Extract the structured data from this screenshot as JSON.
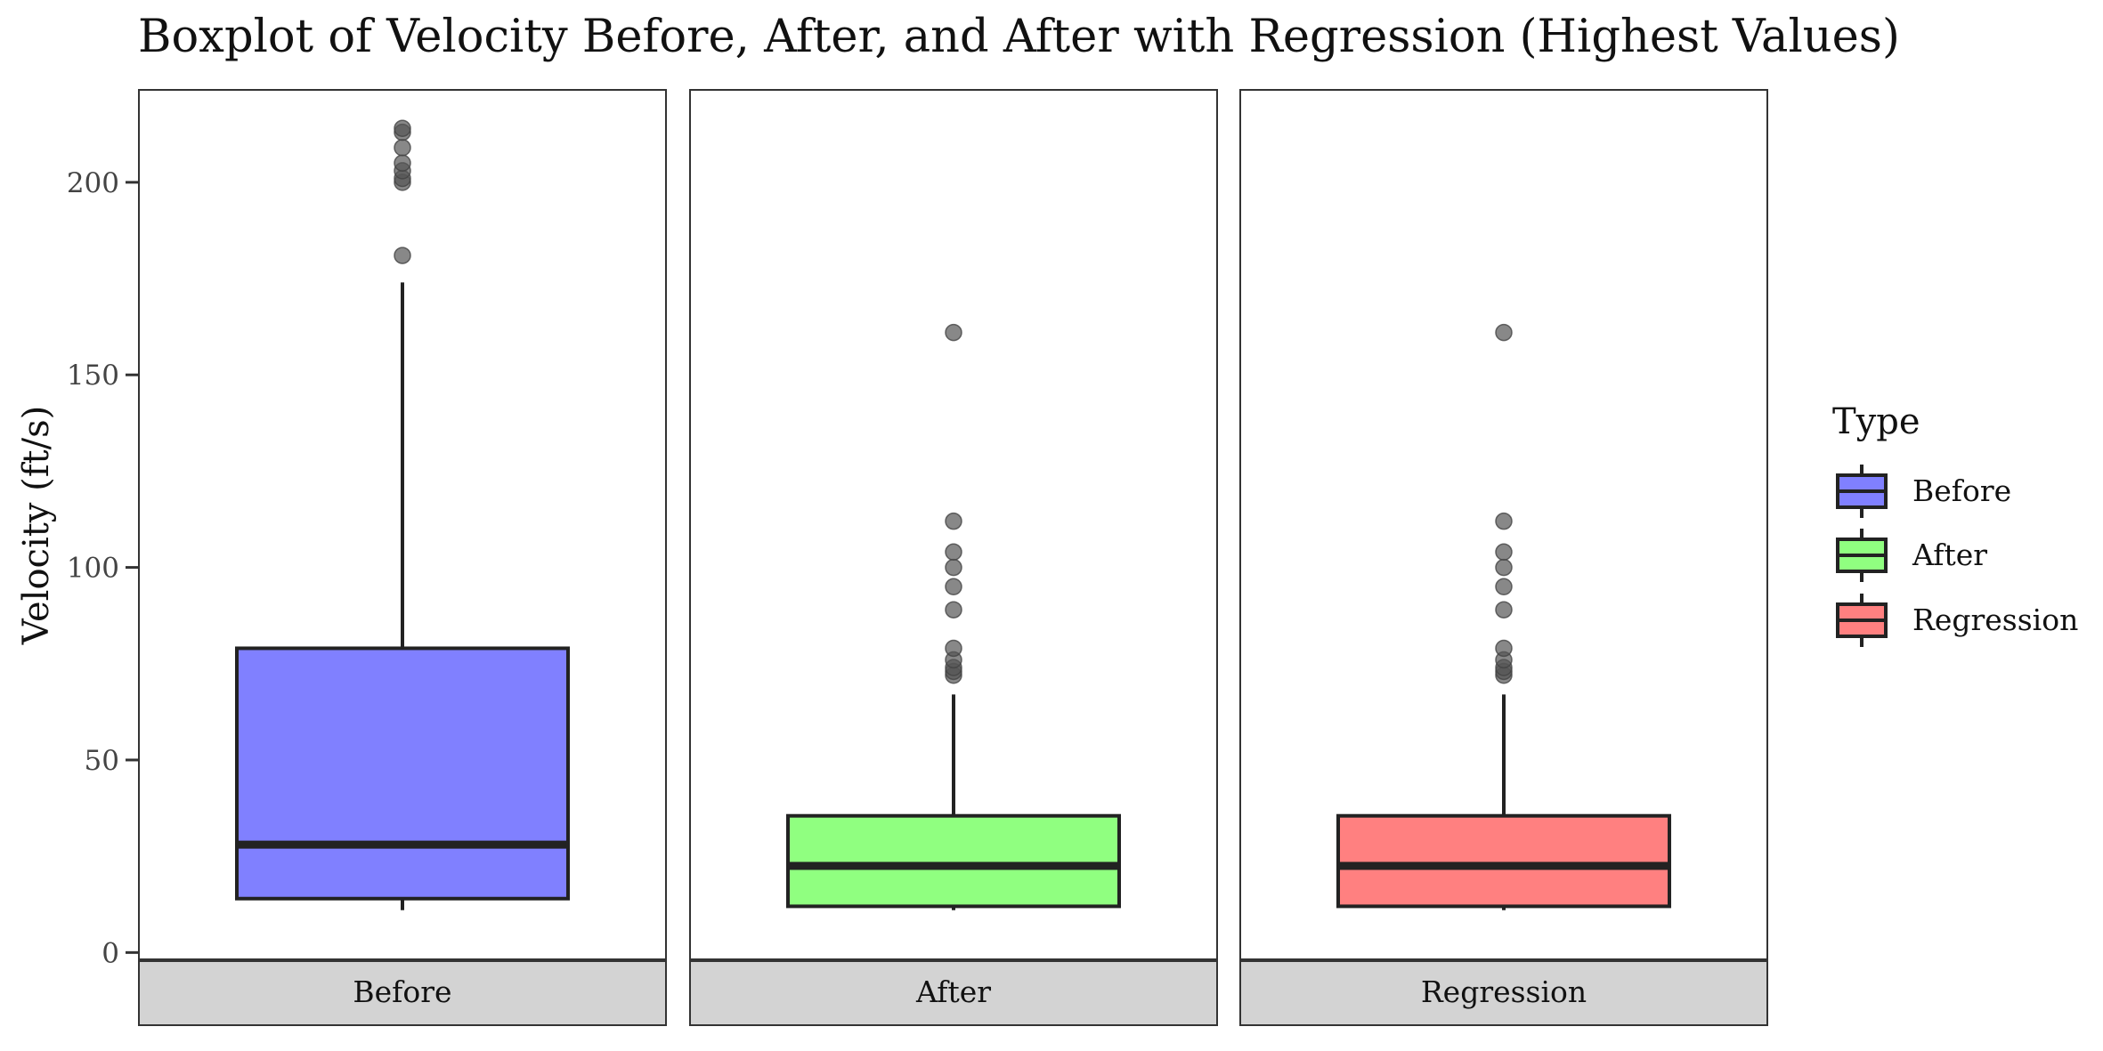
{
  "chart_data": {
    "type": "boxplot",
    "title": "Boxplot of Velocity Before, After, and After with Regression (Highest Values)",
    "xlabel": "",
    "ylabel": "Velocity (ft/s)",
    "ylim": [
      -2,
      224
    ],
    "yticks": [
      0,
      50,
      100,
      150,
      200
    ],
    "facets": [
      "Before",
      "After",
      "Regression"
    ],
    "legend": {
      "title": "Type",
      "position": "right",
      "entries": [
        {
          "label": "Before",
          "color": "#8080FF"
        },
        {
          "label": "After",
          "color": "#90FF80"
        },
        {
          "label": "Regression",
          "color": "#FF8080"
        }
      ]
    },
    "series": [
      {
        "name": "Before",
        "color": "#8080FF",
        "whisker_low": 11,
        "q1": 14,
        "median": 28,
        "q3": 79,
        "whisker_high": 174,
        "outliers": [
          181,
          200,
          201,
          203,
          205,
          209,
          213,
          214
        ]
      },
      {
        "name": "After",
        "color": "#90FF80",
        "whisker_low": 11,
        "q1": 12,
        "median": 22.5,
        "q3": 35.5,
        "whisker_high": 67,
        "outliers": [
          72,
          73,
          74,
          76,
          79,
          89,
          95,
          100,
          104,
          112,
          161
        ]
      },
      {
        "name": "Regression",
        "color": "#FF8080",
        "whisker_low": 11,
        "q1": 12,
        "median": 22.5,
        "q3": 35.5,
        "whisker_high": 67,
        "outliers": [
          72,
          73,
          74,
          76,
          79,
          89,
          95,
          100,
          104,
          112,
          161
        ]
      }
    ]
  }
}
